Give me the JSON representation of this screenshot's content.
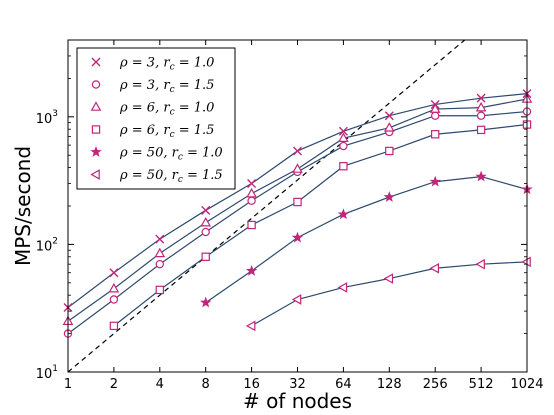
{
  "chart_data": {
    "type": "line",
    "xlabel": "# of nodes",
    "ylabel": "MPS/second",
    "x_scale": "log2",
    "y_scale": "log10",
    "xlim": [
      1,
      1024
    ],
    "ylim": [
      10,
      4000
    ],
    "x_ticks": [
      1,
      2,
      4,
      8,
      16,
      32,
      64,
      128,
      256,
      512,
      1024
    ],
    "x_tick_labels": [
      "1",
      "2",
      "4",
      "8",
      "16",
      "32",
      "64",
      "128",
      "256",
      "512",
      "1024"
    ],
    "y_ticks": [
      {
        "value": 10,
        "base": "10",
        "exp": "1"
      },
      {
        "value": 100,
        "base": "10",
        "exp": "2"
      },
      {
        "value": 1000,
        "base": "10",
        "exp": "3"
      }
    ],
    "grid": false,
    "legend_position": "top-left",
    "line_color": "#2e4a6e",
    "marker_color": "#c2257a",
    "series": [
      {
        "name": "ρ = 3, r_c = 1.0",
        "label_rho": "ρ = 3,",
        "label_rc": "r",
        "label_sub": "c",
        "label_val": "= 1.0",
        "marker": "x",
        "x": [
          1,
          2,
          4,
          8,
          16,
          32,
          64,
          128,
          256,
          512,
          1024
        ],
        "y": [
          32,
          60,
          110,
          185,
          300,
          540,
          770,
          1020,
          1250,
          1400,
          1520
        ]
      },
      {
        "name": "ρ = 3, r_c = 1.5",
        "label_rho": "ρ = 3,",
        "label_rc": "r",
        "label_sub": "c",
        "label_val": "= 1.5",
        "marker": "circle",
        "x": [
          1,
          2,
          4,
          8,
          16,
          32,
          64,
          128,
          256,
          512,
          1024
        ],
        "y": [
          20,
          37,
          70,
          125,
          220,
          370,
          590,
          760,
          1020,
          1020,
          1100
        ]
      },
      {
        "name": "ρ = 6, r_c = 1.0",
        "label_rho": "ρ = 6,",
        "label_rc": "r",
        "label_sub": "c",
        "label_val": "= 1.0",
        "marker": "triangle-up",
        "x": [
          1,
          2,
          4,
          8,
          16,
          32,
          64,
          128,
          256,
          512,
          1024
        ],
        "y": [
          25,
          45,
          85,
          148,
          250,
          390,
          680,
          820,
          1150,
          1180,
          1380
        ]
      },
      {
        "name": "ρ = 6, r_c = 1.5",
        "label_rho": "ρ = 6,",
        "label_rc": "r",
        "label_sub": "c",
        "label_val": "= 1.5",
        "marker": "square",
        "x": [
          2,
          4,
          8,
          16,
          32,
          64,
          128,
          256,
          512,
          1024
        ],
        "y": [
          23,
          44,
          80,
          142,
          215,
          410,
          540,
          730,
          790,
          870
        ]
      },
      {
        "name": "ρ = 50, r_c = 1.0",
        "label_rho": "ρ = 50,",
        "label_rc": "r",
        "label_sub": "c",
        "label_val": "= 1.0",
        "marker": "star",
        "x": [
          8,
          16,
          32,
          64,
          128,
          256,
          512,
          1024
        ],
        "y": [
          35,
          62,
          113,
          172,
          235,
          310,
          340,
          270
        ]
      },
      {
        "name": "ρ = 50, r_c = 1.5",
        "label_rho": "ρ = 50,",
        "label_rc": "r",
        "label_sub": "c",
        "label_val": "= 1.5",
        "marker": "triangle-left",
        "x": [
          16,
          32,
          64,
          128,
          256,
          512,
          1024
        ],
        "y": [
          23,
          37,
          46,
          54,
          65,
          70,
          73
        ]
      }
    ],
    "reference_line": {
      "style": "dashed",
      "x": [
        1,
        1024
      ],
      "y": [
        10,
        10240
      ]
    }
  }
}
